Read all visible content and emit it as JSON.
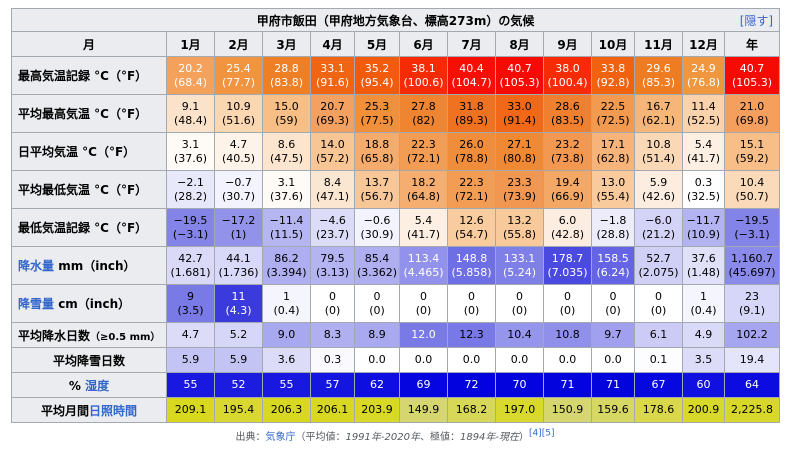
{
  "caption": {
    "title": "甲府市飯田（甲府地方気象台、標高273m）の気候",
    "hide_label": "隠す"
  },
  "header": {
    "row_label": "月",
    "months": [
      "1月",
      "2月",
      "3月",
      "4月",
      "5月",
      "6月",
      "7月",
      "8月",
      "9月",
      "10月",
      "11月",
      "12月"
    ],
    "year": "年"
  },
  "rows": [
    {
      "label": "最高気温記録 °C（°F）",
      "lines": 2,
      "white": true,
      "link": false,
      "cells": [
        {
          "a": "20.2",
          "b": "(68.4)",
          "bg": "#f4a15c"
        },
        {
          "a": "25.4",
          "b": "(77.7)",
          "bg": "#f09440"
        },
        {
          "a": "28.8",
          "b": "(83.8)",
          "bg": "#ee7f25"
        },
        {
          "a": "33.1",
          "b": "(91.6)",
          "bg": "#f06514"
        },
        {
          "a": "35.2",
          "b": "(95.4)",
          "bg": "#f25a0c"
        },
        {
          "a": "38.1",
          "b": "(100.6)",
          "bg": "#f52b06"
        },
        {
          "a": "40.4",
          "b": "(104.7)",
          "bg": "#f60f04"
        },
        {
          "a": "40.7",
          "b": "(105.3)",
          "bg": "#f60b04"
        },
        {
          "a": "38.0",
          "b": "(100.4)",
          "bg": "#f52c06"
        },
        {
          "a": "33.8",
          "b": "(92.8)",
          "bg": "#f0620f"
        },
        {
          "a": "29.6",
          "b": "(85.3)",
          "bg": "#ee7c22"
        },
        {
          "a": "24.9",
          "b": "(76.8)",
          "bg": "#f0963f"
        },
        {
          "a": "40.7",
          "b": "(105.3)",
          "bg": "#f60b04"
        }
      ]
    },
    {
      "label": "平均最高気温 °C（°F）",
      "lines": 2,
      "white": false,
      "link": false,
      "cells": [
        {
          "a": "9.1",
          "b": "(48.4)",
          "bg": "#fbe3cb"
        },
        {
          "a": "10.9",
          "b": "(51.6)",
          "bg": "#fad6b1"
        },
        {
          "a": "15.0",
          "b": "(59)",
          "bg": "#f7bf86"
        },
        {
          "a": "20.7",
          "b": "(69.3)",
          "bg": "#f4a060"
        },
        {
          "a": "25.3",
          "b": "(77.5)",
          "bg": "#f1903a"
        },
        {
          "a": "27.8",
          "b": "(82)",
          "bg": "#ef8530"
        },
        {
          "a": "31.8",
          "b": "(89.3)",
          "bg": "#ef7220"
        },
        {
          "a": "33.0",
          "b": "(91.4)",
          "bg": "#f06818"
        },
        {
          "a": "28.6",
          "b": "(83.5)",
          "bg": "#ee8030"
        },
        {
          "a": "22.5",
          "b": "(72.5)",
          "bg": "#f29a50"
        },
        {
          "a": "16.7",
          "b": "(62.1)",
          "bg": "#f6b67a"
        },
        {
          "a": "11.4",
          "b": "(52.5)",
          "bg": "#fad2ab"
        },
        {
          "a": "21.0",
          "b": "(69.8)",
          "bg": "#f49f5e"
        }
      ]
    },
    {
      "label": "日平均気温 °C（°F）",
      "lines": 2,
      "white": false,
      "link": false,
      "cells": [
        {
          "a": "3.1",
          "b": "(37.6)",
          "bg": "#fefaf5"
        },
        {
          "a": "4.7",
          "b": "(40.5)",
          "bg": "#fef3e8"
        },
        {
          "a": "8.6",
          "b": "(47.5)",
          "bg": "#fbe5cf"
        },
        {
          "a": "14.0",
          "b": "(57.2)",
          "bg": "#f8c594"
        },
        {
          "a": "18.8",
          "b": "(65.8)",
          "bg": "#f5ab6c"
        },
        {
          "a": "22.3",
          "b": "(72.1)",
          "bg": "#f39c54"
        },
        {
          "a": "26.0",
          "b": "(78.8)",
          "bg": "#f08d3a"
        },
        {
          "a": "27.1",
          "b": "(80.8)",
          "bg": "#ef8934"
        },
        {
          "a": "23.2",
          "b": "(73.8)",
          "bg": "#f29851"
        },
        {
          "a": "17.1",
          "b": "(62.8)",
          "bg": "#f6b47a"
        },
        {
          "a": "10.8",
          "b": "(51.4)",
          "bg": "#fad8b5"
        },
        {
          "a": "5.4",
          "b": "(41.7)",
          "bg": "#fdf0e2"
        },
        {
          "a": "15.1",
          "b": "(59.2)",
          "bg": "#f7be87"
        }
      ]
    },
    {
      "label": "平均最低気温 °C（°F）",
      "lines": 2,
      "white": false,
      "link": false,
      "cells": [
        {
          "a": "−2.1",
          "b": "(28.2)",
          "bg": "#e8e8fb"
        },
        {
          "a": "−0.7",
          "b": "(30.7)",
          "bg": "#f3f3fd"
        },
        {
          "a": "3.1",
          "b": "(37.6)",
          "bg": "#fefaf5"
        },
        {
          "a": "8.4",
          "b": "(47.1)",
          "bg": "#fbe6d1"
        },
        {
          "a": "13.7",
          "b": "(56.7)",
          "bg": "#f8c797"
        },
        {
          "a": "18.2",
          "b": "(64.8)",
          "bg": "#f5ae70"
        },
        {
          "a": "22.3",
          "b": "(72.1)",
          "bg": "#f39c54"
        },
        {
          "a": "23.3",
          "b": "(73.9)",
          "bg": "#f29751"
        },
        {
          "a": "19.4",
          "b": "(66.9)",
          "bg": "#f4a866"
        },
        {
          "a": "13.0",
          "b": "(55.4)",
          "bg": "#f8ca9c"
        },
        {
          "a": "5.9",
          "b": "(42.6)",
          "bg": "#fdede0"
        },
        {
          "a": "0.3",
          "b": "(32.5)",
          "bg": "#fefefe"
        },
        {
          "a": "10.4",
          "b": "(50.7)",
          "bg": "#fadab8"
        }
      ]
    },
    {
      "label": "最低気温記録 °C（°F）",
      "lines": 2,
      "white": false,
      "link": false,
      "cells": [
        {
          "a": "−19.5",
          "b": "(−3.1)",
          "bg": "#8383e8"
        },
        {
          "a": "−17.2",
          "b": "(1)",
          "bg": "#9292eb"
        },
        {
          "a": "−11.4",
          "b": "(11.5)",
          "bg": "#b5b5f2"
        },
        {
          "a": "−4.6",
          "b": "(23.7)",
          "bg": "#dcdcf8"
        },
        {
          "a": "−0.6",
          "b": "(30.9)",
          "bg": "#f3f3fd"
        },
        {
          "a": "5.4",
          "b": "(41.7)",
          "bg": "#fdf0e2"
        },
        {
          "a": "12.6",
          "b": "(54.7)",
          "bg": "#f8cc9f"
        },
        {
          "a": "13.2",
          "b": "(55.8)",
          "bg": "#f8c99b"
        },
        {
          "a": "6.0",
          "b": "(42.8)",
          "bg": "#fdede0"
        },
        {
          "a": "−1.8",
          "b": "(28.8)",
          "bg": "#ececfb"
        },
        {
          "a": "−6.0",
          "b": "(21.2)",
          "bg": "#d3d3f7"
        },
        {
          "a": "−11.7",
          "b": "(10.9)",
          "bg": "#b3b3f2"
        },
        {
          "a": "−19.5",
          "b": "(−3.1)",
          "bg": "#8383e8"
        }
      ]
    },
    {
      "label_pre": "",
      "label_link": "降水量",
      "label_post": " mm（inch）",
      "lines": 2,
      "white": false,
      "link": true,
      "cells": [
        {
          "a": "42.7",
          "b": "(1.681)",
          "bg": "#dadaf8"
        },
        {
          "a": "44.1",
          "b": "(1.736)",
          "bg": "#d8d8f8"
        },
        {
          "a": "86.2",
          "b": "(3.394)",
          "bg": "#aeaef1"
        },
        {
          "a": "79.5",
          "b": "(3.13)",
          "bg": "#b4b4f2"
        },
        {
          "a": "85.4",
          "b": "(3.362)",
          "bg": "#aeaef1"
        },
        {
          "a": "113.4",
          "b": "(4.465)",
          "bg": "#9292ec",
          "w": true
        },
        {
          "a": "148.8",
          "b": "(5.858)",
          "bg": "#6e6ee5",
          "w": true
        },
        {
          "a": "133.1",
          "b": "(5.24)",
          "bg": "#7f7fe8",
          "w": true
        },
        {
          "a": "178.7",
          "b": "(7.035)",
          "bg": "#4a4ae0",
          "w": true
        },
        {
          "a": "158.5",
          "b": "(6.24)",
          "bg": "#6464e4",
          "w": true
        },
        {
          "a": "52.7",
          "b": "(2.075)",
          "bg": "#d0d0f6"
        },
        {
          "a": "37.6",
          "b": "(1.48)",
          "bg": "#e0e0f9"
        },
        {
          "a": "1,160.7",
          "b": "(45.697)",
          "bg": "#8a8aea"
        }
      ]
    },
    {
      "label_pre": "",
      "label_link": "降雪量",
      "label_post": " cm（inch）",
      "lines": 2,
      "white": false,
      "link": true,
      "cells": [
        {
          "a": "9",
          "b": "(3.5)",
          "bg": "#7a7ae7"
        },
        {
          "a": "11",
          "b": "(4.3)",
          "bg": "#3a3add",
          "w": true
        },
        {
          "a": "1",
          "b": "(0.4)",
          "bg": "#f5f5fe"
        },
        {
          "a": "0",
          "b": "(0)",
          "bg": "#ffffff"
        },
        {
          "a": "0",
          "b": "(0)",
          "bg": "#ffffff"
        },
        {
          "a": "0",
          "b": "(0)",
          "bg": "#ffffff"
        },
        {
          "a": "0",
          "b": "(0)",
          "bg": "#ffffff"
        },
        {
          "a": "0",
          "b": "(0)",
          "bg": "#ffffff"
        },
        {
          "a": "0",
          "b": "(0)",
          "bg": "#ffffff"
        },
        {
          "a": "0",
          "b": "(0)",
          "bg": "#ffffff"
        },
        {
          "a": "0",
          "b": "(0)",
          "bg": "#ffffff"
        },
        {
          "a": "1",
          "b": "(0.4)",
          "bg": "#f5f5fe"
        },
        {
          "a": "23",
          "b": "(9.1)",
          "bg": "#d6d6f8"
        }
      ]
    },
    {
      "label_main": "平均降水日数",
      "label_small": "（≥0.5 mm）",
      "lines": 1,
      "white": false,
      "link": false,
      "small": true,
      "cells": [
        {
          "a": "4.7",
          "bg": "#dcdcf8"
        },
        {
          "a": "5.2",
          "bg": "#d6d6f8"
        },
        {
          "a": "9.0",
          "bg": "#a8a8f0"
        },
        {
          "a": "8.3",
          "bg": "#b0b0f1"
        },
        {
          "a": "8.9",
          "bg": "#a9a9f0"
        },
        {
          "a": "12.0",
          "bg": "#7a7ae7",
          "w": true
        },
        {
          "a": "12.3",
          "bg": "#7878e7"
        },
        {
          "a": "10.4",
          "bg": "#9595ec"
        },
        {
          "a": "10.8",
          "bg": "#9090eb"
        },
        {
          "a": "9.7",
          "bg": "#a0a0ef"
        },
        {
          "a": "6.1",
          "bg": "#cbcbf6"
        },
        {
          "a": "4.9",
          "bg": "#d9d9f8"
        },
        {
          "a": "102.2",
          "bg": "#a5a5f0"
        }
      ]
    },
    {
      "label": "平均降雪日数",
      "lines": 1,
      "white": false,
      "link": false,
      "center": true,
      "cells": [
        {
          "a": "5.9",
          "bg": "#c4c4f4"
        },
        {
          "a": "5.9",
          "bg": "#c4c4f4"
        },
        {
          "a": "3.6",
          "bg": "#dcdcf8"
        },
        {
          "a": "0.3",
          "bg": "#fafafe"
        },
        {
          "a": "0.0",
          "bg": "#ffffff"
        },
        {
          "a": "0.0",
          "bg": "#ffffff"
        },
        {
          "a": "0.0",
          "bg": "#ffffff"
        },
        {
          "a": "0.0",
          "bg": "#ffffff"
        },
        {
          "a": "0.0",
          "bg": "#ffffff"
        },
        {
          "a": "0.0",
          "bg": "#ffffff"
        },
        {
          "a": "0.1",
          "bg": "#fdfdff"
        },
        {
          "a": "3.5",
          "bg": "#dcdcf8"
        },
        {
          "a": "19.4",
          "bg": "#e4e4fa"
        }
      ]
    },
    {
      "label_pre": "% ",
      "label_link": "湿度",
      "label_post": "",
      "lines": 1,
      "white": false,
      "link": true,
      "center": true,
      "cells": [
        {
          "a": "55",
          "bg": "#1818e0",
          "w": true
        },
        {
          "a": "52",
          "bg": "#1c1ce0",
          "w": true
        },
        {
          "a": "55",
          "bg": "#1818e0",
          "w": true
        },
        {
          "a": "57",
          "bg": "#1515e0",
          "w": true
        },
        {
          "a": "62",
          "bg": "#0e0ee0",
          "w": true
        },
        {
          "a": "69",
          "bg": "#0505df",
          "w": true
        },
        {
          "a": "72",
          "bg": "#0202de",
          "w": true
        },
        {
          "a": "70",
          "bg": "#0303de",
          "w": true
        },
        {
          "a": "71",
          "bg": "#0303de",
          "w": true
        },
        {
          "a": "71",
          "bg": "#0303de",
          "w": true
        },
        {
          "a": "67",
          "bg": "#0707df",
          "w": true
        },
        {
          "a": "60",
          "bg": "#1010e0",
          "w": true
        },
        {
          "a": "64",
          "bg": "#0c0ce0",
          "w": true
        }
      ]
    },
    {
      "label_pre": "平均月間",
      "label_link": "日照時間",
      "label_post": "",
      "lines": 1,
      "white": false,
      "link": true,
      "center": true,
      "cells": [
        {
          "a": "209.1",
          "bg": "#d8d81e"
        },
        {
          "a": "195.4",
          "bg": "#d8d830"
        },
        {
          "a": "206.3",
          "bg": "#d8d822"
        },
        {
          "a": "206.1",
          "bg": "#d8d822"
        },
        {
          "a": "203.9",
          "bg": "#d8d826"
        },
        {
          "a": "149.9",
          "bg": "#d6d670"
        },
        {
          "a": "168.2",
          "bg": "#d8d858"
        },
        {
          "a": "197.0",
          "bg": "#d8d82e"
        },
        {
          "a": "150.9",
          "bg": "#d6d66e"
        },
        {
          "a": "159.6",
          "bg": "#d7d764"
        },
        {
          "a": "178.6",
          "bg": "#d8d84a"
        },
        {
          "a": "200.9",
          "bg": "#d8d828"
        },
        {
          "a": "2,225.8",
          "bg": "#d8d82c"
        }
      ]
    }
  ],
  "source": {
    "prefix": "出典：",
    "org": "気象庁",
    "note_pre": "（平均値：",
    "period": "1991年-2020年",
    "note_mid": "、極値：",
    "period2": "1894年-現在",
    "note_post": "）",
    "refs": "[4][5]"
  }
}
